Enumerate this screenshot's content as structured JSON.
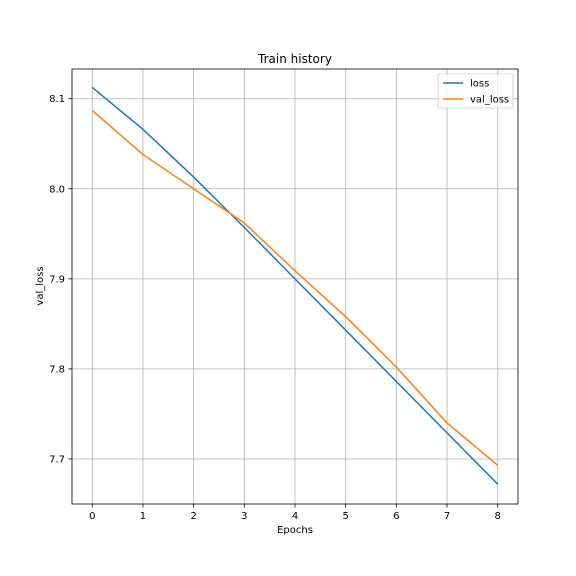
{
  "chart_data": {
    "type": "line",
    "title": "Train history",
    "xlabel": "Epochs",
    "ylabel": "val_loss",
    "x": [
      0,
      1,
      2,
      3,
      4,
      5,
      6,
      7,
      8
    ],
    "xlim": [
      -0.4,
      8.4
    ],
    "ylim": [
      7.65,
      8.133
    ],
    "xticks": [
      0,
      1,
      2,
      3,
      4,
      5,
      6,
      7,
      8
    ],
    "yticks": [
      7.7,
      7.8,
      7.9,
      8.0,
      8.1
    ],
    "grid": true,
    "legend_position": "top-right",
    "series": [
      {
        "name": "loss",
        "color": "#1f77b4",
        "values": [
          8.1125,
          8.066,
          8.013,
          7.957,
          7.9,
          7.843,
          7.786,
          7.729,
          7.672
        ]
      },
      {
        "name": "val_loss",
        "color": "#ff7f0e",
        "values": [
          8.087,
          8.038,
          8.0,
          7.962,
          7.909,
          7.858,
          7.802,
          7.74,
          7.693
        ]
      }
    ]
  }
}
